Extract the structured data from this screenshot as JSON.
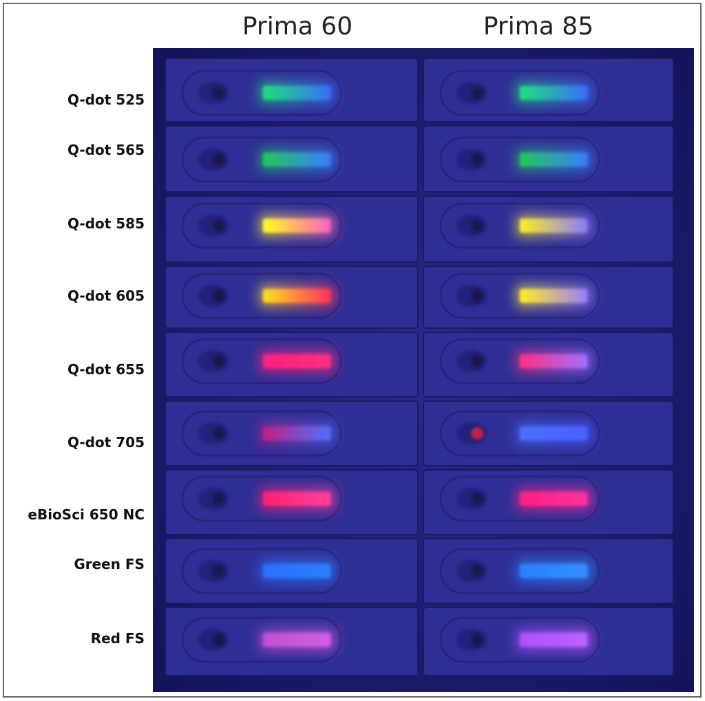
{
  "columns": [
    "Prima 60",
    "Prima 85"
  ],
  "rows": [
    "Q-dot 525",
    "Q-dot 565",
    "Q-dot 585",
    "Q-dot 605",
    "Q-dot 655",
    "Q-dot 705",
    "eBioSci 650 NC",
    "Green FS",
    "Red FS"
  ]
}
